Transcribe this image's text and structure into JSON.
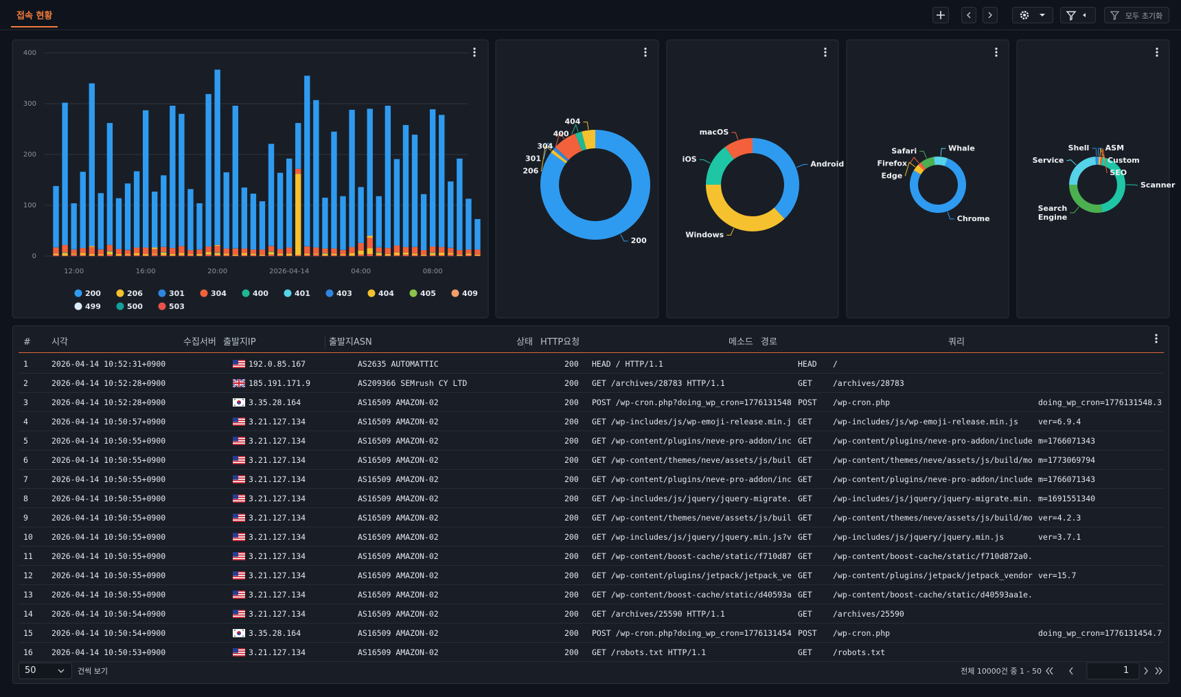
{
  "header": {
    "title": "접속 현황",
    "reset": "모두 초기화"
  },
  "chart_data": [
    {
      "type": "bar",
      "stacked": true,
      "grid": true,
      "legend": "bottom",
      "categories": [
        null,
        null,
        "12:00",
        null,
        null,
        null,
        null,
        null,
        null,
        null,
        "16:00",
        null,
        null,
        null,
        null,
        null,
        null,
        null,
        "20:00",
        null,
        null,
        null,
        null,
        null,
        null,
        null,
        "2026-04-14",
        null,
        null,
        null,
        null,
        null,
        null,
        null,
        "04:00",
        null,
        null,
        null,
        null,
        null,
        null,
        null,
        "08:00",
        null,
        null,
        null,
        null,
        null
      ],
      "ylim": [
        0,
        400
      ],
      "yticks": [
        0,
        100,
        200,
        300,
        400
      ],
      "series": [
        {
          "name": "200",
          "color": "#2f9bf0",
          "values": [
            120,
            280,
            90,
            150,
            320,
            110,
            240,
            100,
            130,
            150,
            270,
            110,
            140,
            280,
            260,
            120,
            90,
            300,
            345,
            150,
            280,
            120,
            110,
            95,
            200,
            150,
            175,
            90,
            335,
            290,
            100,
            230,
            105,
            270,
            110,
            250,
            100,
            280,
            170,
            240,
            220,
            110,
            270,
            260,
            130,
            180,
            100,
            60
          ]
        },
        {
          "name": "206",
          "color": "#f5c12e",
          "values": [
            0,
            0,
            0,
            0,
            2,
            0,
            0,
            0,
            0,
            0,
            0,
            3,
            0,
            0,
            0,
            0,
            0,
            0,
            2,
            0,
            0,
            0,
            0,
            0,
            0,
            0,
            0,
            0,
            0,
            0,
            0,
            0,
            0,
            0,
            0,
            4,
            0,
            0,
            0,
            0,
            0,
            0,
            0,
            0,
            0,
            0,
            0,
            0
          ]
        },
        {
          "name": "301",
          "color": "#2f86e0",
          "values": [
            1,
            0,
            1,
            0,
            0,
            1,
            0,
            0,
            1,
            0,
            0,
            0,
            1,
            0,
            0,
            0,
            1,
            0,
            0,
            0,
            1,
            0,
            0,
            0,
            1,
            0,
            0,
            0,
            1,
            0,
            0,
            0,
            1,
            0,
            0,
            0,
            1,
            0,
            0,
            0,
            1,
            0,
            0,
            0,
            1,
            0,
            0,
            0
          ]
        },
        {
          "name": "304",
          "color": "#f2613b",
          "values": [
            12,
            15,
            8,
            10,
            14,
            9,
            12,
            10,
            8,
            11,
            13,
            9,
            10,
            12,
            14,
            8,
            9,
            11,
            13,
            10,
            12,
            9,
            8,
            10,
            11,
            9,
            12,
            10,
            14,
            12,
            9,
            10,
            8,
            12,
            15,
            20,
            10,
            12,
            14,
            11,
            13,
            9,
            12,
            11,
            10,
            9,
            8,
            10
          ]
        },
        {
          "name": "400",
          "color": "#1fb894",
          "values": [
            0,
            1,
            0,
            0,
            0,
            0,
            1,
            0,
            0,
            0,
            0,
            0,
            1,
            0,
            0,
            0,
            0,
            0,
            1,
            0,
            0,
            0,
            0,
            0,
            1,
            0,
            0,
            0,
            0,
            0,
            1,
            0,
            0,
            0,
            0,
            0,
            1,
            0,
            0,
            0,
            0,
            0,
            1,
            0,
            0,
            0,
            0,
            0
          ]
        },
        {
          "name": "401",
          "color": "#56d3e8",
          "values": [
            0,
            0,
            0,
            0,
            0,
            0,
            0,
            0,
            0,
            0,
            0,
            0,
            0,
            0,
            0,
            0,
            0,
            0,
            0,
            0,
            0,
            0,
            0,
            0,
            0,
            0,
            0,
            0,
            0,
            0,
            0,
            0,
            0,
            0,
            0,
            0,
            0,
            0,
            0,
            0,
            0,
            0,
            0,
            0,
            0,
            0,
            0,
            0
          ]
        },
        {
          "name": "403",
          "color": "#2f86e0",
          "values": [
            0,
            0,
            0,
            0,
            0,
            0,
            0,
            0,
            0,
            0,
            0,
            0,
            0,
            0,
            0,
            0,
            0,
            0,
            0,
            0,
            0,
            0,
            0,
            0,
            0,
            0,
            0,
            0,
            0,
            0,
            0,
            0,
            0,
            0,
            0,
            0,
            0,
            0,
            0,
            0,
            0,
            0,
            0,
            0,
            0,
            0,
            0,
            0
          ]
        },
        {
          "name": "404",
          "color": "#f5c12e",
          "values": [
            3,
            5,
            2,
            4,
            3,
            2,
            6,
            3,
            2,
            4,
            3,
            2,
            5,
            3,
            4,
            2,
            3,
            5,
            4,
            3,
            2,
            4,
            3,
            2,
            5,
            3,
            4,
            160,
            3,
            2,
            4,
            3,
            2,
            5,
            8,
            12,
            4,
            3,
            5,
            4,
            3,
            2,
            4,
            5,
            3,
            2,
            3,
            2
          ]
        },
        {
          "name": "405",
          "color": "#8bc34a",
          "values": [
            0,
            0,
            0,
            0,
            0,
            0,
            0,
            0,
            0,
            0,
            0,
            0,
            0,
            0,
            0,
            0,
            0,
            0,
            0,
            0,
            0,
            0,
            0,
            0,
            0,
            0,
            0,
            0,
            0,
            0,
            0,
            0,
            0,
            0,
            0,
            0,
            0,
            0,
            0,
            0,
            0,
            0,
            0,
            0,
            0,
            0,
            0,
            0
          ]
        },
        {
          "name": "409",
          "color": "#f29f6b",
          "values": [
            0,
            0,
            0,
            0,
            0,
            0,
            0,
            0,
            0,
            0,
            0,
            0,
            0,
            0,
            0,
            0,
            0,
            0,
            0,
            0,
            0,
            0,
            0,
            0,
            0,
            0,
            0,
            0,
            0,
            0,
            0,
            0,
            0,
            0,
            0,
            0,
            0,
            0,
            0,
            0,
            0,
            0,
            0,
            0,
            0,
            0,
            0,
            0
          ]
        },
        {
          "name": "499",
          "color": "#dceaf7",
          "values": [
            0,
            0,
            0,
            0,
            0,
            0,
            0,
            0,
            0,
            0,
            0,
            0,
            0,
            0,
            0,
            0,
            0,
            0,
            0,
            0,
            0,
            0,
            0,
            0,
            0,
            0,
            0,
            0,
            0,
            0,
            0,
            0,
            0,
            0,
            0,
            0,
            0,
            0,
            0,
            0,
            0,
            0,
            0,
            0,
            0,
            0,
            0,
            0
          ]
        },
        {
          "name": "500",
          "color": "#16a09a",
          "values": [
            0,
            0,
            0,
            0,
            0,
            0,
            0,
            0,
            0,
            0,
            0,
            0,
            0,
            0,
            0,
            0,
            0,
            0,
            0,
            0,
            0,
            0,
            0,
            0,
            0,
            0,
            0,
            0,
            0,
            0,
            0,
            0,
            0,
            0,
            0,
            0,
            0,
            0,
            0,
            0,
            0,
            0,
            0,
            0,
            0,
            0,
            0,
            0
          ]
        },
        {
          "name": "503",
          "color": "#e8524a",
          "values": [
            2,
            1,
            3,
            2,
            1,
            2,
            3,
            1,
            2,
            2,
            1,
            3,
            2,
            1,
            2,
            2,
            1,
            3,
            2,
            2,
            1,
            2,
            2,
            1,
            3,
            2,
            1,
            2,
            2,
            3,
            1,
            2,
            2,
            1,
            3,
            4,
            2,
            1,
            2,
            3,
            2,
            1,
            2,
            2,
            3,
            1,
            2,
            1
          ]
        }
      ]
    },
    {
      "type": "donut",
      "categories": [
        "200",
        "206",
        "301",
        "304",
        "400",
        "404"
      ],
      "values": [
        85,
        1,
        1,
        7,
        2,
        4
      ],
      "colors": [
        "#2f9bf0",
        "#f5c12e",
        "#2f86e0",
        "#f2613b",
        "#1fb894",
        "#f5c12e"
      ]
    },
    {
      "type": "donut",
      "categories": [
        "Android",
        "Windows",
        "iOS",
        "macOS"
      ],
      "values": [
        38,
        37,
        15,
        10
      ],
      "colors": [
        "#2f9bf0",
        "#f5c12e",
        "#1fc6a6",
        "#f2613b"
      ]
    },
    {
      "type": "donut",
      "categories": [
        "Chrome",
        "Edge",
        "Firefox",
        "Safari",
        "Whale"
      ],
      "values": [
        78,
        4,
        2,
        8,
        8
      ],
      "colors": [
        "#2f9bf0",
        "#f5c12e",
        "#f2613b",
        "#4caf50",
        "#56d3e8"
      ]
    },
    {
      "type": "donut",
      "categories": [
        "ASM",
        "Custom",
        "SEO",
        "Scanner",
        "Search Engine",
        "Service",
        "Shell"
      ],
      "values": [
        1,
        1,
        1,
        44,
        28,
        24,
        1
      ],
      "colors": [
        "#2f9bf0",
        "#f5c12e",
        "#f2613b",
        "#1fc6a6",
        "#4caf50",
        "#56d3e8",
        "#2f86e0"
      ]
    }
  ],
  "table": {
    "columns": [
      "#",
      "시각",
      "수집서버",
      "출발지IP",
      "출발지ASN",
      "상태",
      "HTTP요청",
      "메소드",
      "경로",
      "쿼리"
    ],
    "flags": [
      "us",
      "gb",
      "kr",
      "us",
      "us",
      "us",
      "us",
      "us",
      "us",
      "us",
      "us",
      "us",
      "us",
      "us",
      "kr",
      "us"
    ],
    "rows": [
      [
        1,
        "2026-04-14 10:52:31+0900",
        null,
        "192.0.85.167",
        "AS2635 AUTOMATTIC",
        200,
        "HEAD / HTTP/1.1",
        "HEAD",
        "/",
        null
      ],
      [
        2,
        "2026-04-14 10:52:28+0900",
        null,
        "185.191.171.9",
        "AS209366 SEMrush CY LTD",
        200,
        "GET /archives/28783 HTTP/1.1",
        "GET",
        "/archives/28783",
        null
      ],
      [
        3,
        "2026-04-14 10:52:28+0900",
        null,
        "3.35.28.164",
        "AS16509 AMAZON-02",
        200,
        "POST /wp-cron.php?doing_wp_cron=1776131548",
        "POST",
        "/wp-cron.php",
        "doing_wp_cron=1776131548.3"
      ],
      [
        4,
        "2026-04-14 10:50:57+0900",
        null,
        "3.21.127.134",
        "AS16509 AMAZON-02",
        200,
        "GET /wp-includes/js/wp-emoji-release.min.j",
        "GET",
        "/wp-includes/js/wp-emoji-release.min.js",
        "ver=6.9.4"
      ],
      [
        5,
        "2026-04-14 10:50:55+0900",
        null,
        "3.21.127.134",
        "AS16509 AMAZON-02",
        200,
        "GET /wp-content/plugins/neve-pro-addon/inc",
        "GET",
        "/wp-content/plugins/neve-pro-addon/include",
        "m=1766071343"
      ],
      [
        6,
        "2026-04-14 10:50:55+0900",
        null,
        "3.21.127.134",
        "AS16509 AMAZON-02",
        200,
        "GET /wp-content/themes/neve/assets/js/buil",
        "GET",
        "/wp-content/themes/neve/assets/js/build/mo",
        "m=1773069794"
      ],
      [
        7,
        "2026-04-14 10:50:55+0900",
        null,
        "3.21.127.134",
        "AS16509 AMAZON-02",
        200,
        "GET /wp-content/plugins/neve-pro-addon/inc",
        "GET",
        "/wp-content/plugins/neve-pro-addon/include",
        "m=1766071343"
      ],
      [
        8,
        "2026-04-14 10:50:55+0900",
        null,
        "3.21.127.134",
        "AS16509 AMAZON-02",
        200,
        "GET /wp-includes/js/jquery/jquery-migrate.",
        "GET",
        "/wp-includes/js/jquery/jquery-migrate.min.",
        "m=1691551340"
      ],
      [
        9,
        "2026-04-14 10:50:55+0900",
        null,
        "3.21.127.134",
        "AS16509 AMAZON-02",
        200,
        "GET /wp-content/themes/neve/assets/js/buil",
        "GET",
        "/wp-content/themes/neve/assets/js/build/mo",
        "ver=4.2.3"
      ],
      [
        10,
        "2026-04-14 10:50:55+0900",
        null,
        "3.21.127.134",
        "AS16509 AMAZON-02",
        200,
        "GET /wp-includes/js/jquery/jquery.min.js?v",
        "GET",
        "/wp-includes/js/jquery/jquery.min.js",
        "ver=3.7.1"
      ],
      [
        11,
        "2026-04-14 10:50:55+0900",
        null,
        "3.21.127.134",
        "AS16509 AMAZON-02",
        200,
        "GET /wp-content/boost-cache/static/f710d87",
        "GET",
        "/wp-content/boost-cache/static/f710d872a0.",
        null
      ],
      [
        12,
        "2026-04-14 10:50:55+0900",
        null,
        "3.21.127.134",
        "AS16509 AMAZON-02",
        200,
        "GET /wp-content/plugins/jetpack/jetpack_ve",
        "GET",
        "/wp-content/plugins/jetpack/jetpack_vendor",
        "ver=15.7"
      ],
      [
        13,
        "2026-04-14 10:50:55+0900",
        null,
        "3.21.127.134",
        "AS16509 AMAZON-02",
        200,
        "GET /wp-content/boost-cache/static/d40593a",
        "GET",
        "/wp-content/boost-cache/static/d40593aa1e.",
        null
      ],
      [
        14,
        "2026-04-14 10:50:54+0900",
        null,
        "3.21.127.134",
        "AS16509 AMAZON-02",
        200,
        "GET /archives/25590 HTTP/1.1",
        "GET",
        "/archives/25590",
        null
      ],
      [
        15,
        "2026-04-14 10:50:54+0900",
        null,
        "3.35.28.164",
        "AS16509 AMAZON-02",
        200,
        "POST /wp-cron.php?doing_wp_cron=1776131454",
        "POST",
        "/wp-cron.php",
        "doing_wp_cron=1776131454.7"
      ],
      [
        16,
        "2026-04-14 10:50:53+0900",
        null,
        "3.21.127.134",
        "AS16509 AMAZON-02",
        200,
        "GET /robots.txt HTTP/1.1",
        "GET",
        "/robots.txt",
        null
      ]
    ]
  },
  "footer": {
    "page_size": "50",
    "page_size_label": "건씩 보기",
    "summary": "전체 10000건 중 1 - 50",
    "page": "1"
  }
}
